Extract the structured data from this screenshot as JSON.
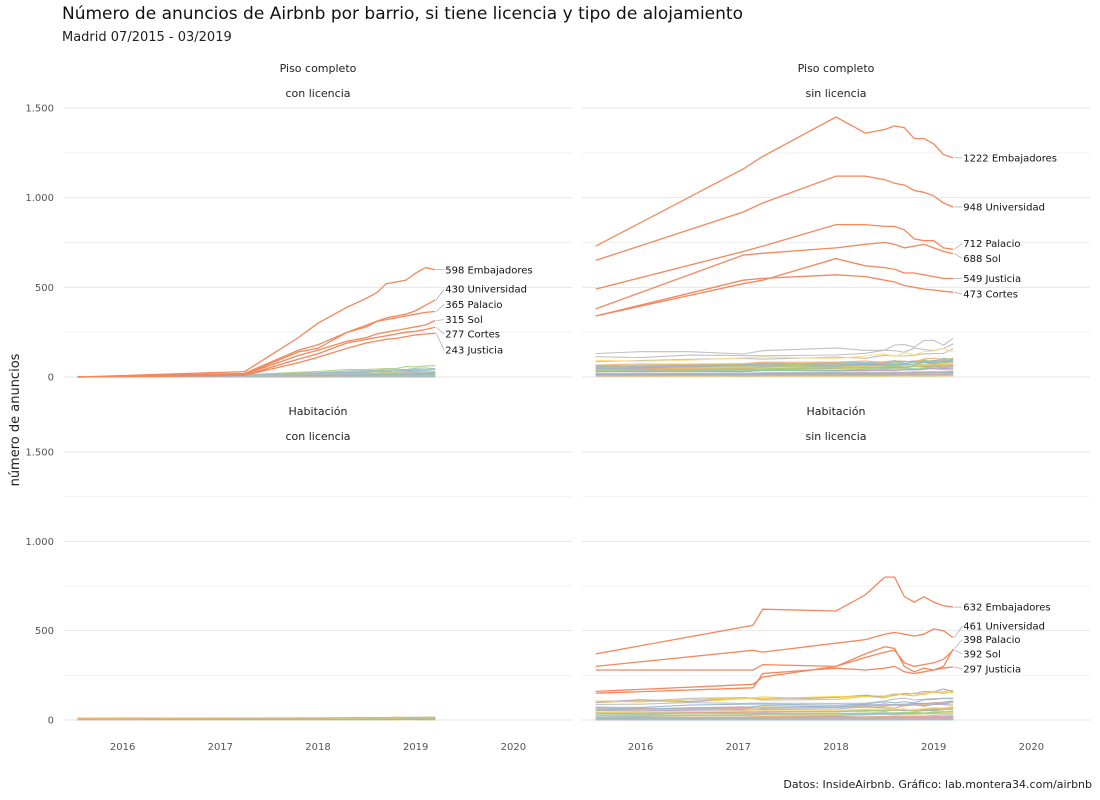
{
  "title": "Número de anuncios de Airbnb por barrio, si tiene licencia y tipo de alojamiento",
  "subtitle": "Madrid 07/2015 - 03/2019",
  "caption": "Datos: InsideAirbnb. Gráfico: lab.montera34.com/airbnb",
  "chart_data": {
    "type": "line",
    "ylabel": "número de anuncios",
    "xlim": [
      2015.4,
      2020.6
    ],
    "ylim": [
      0,
      1500
    ],
    "xticks": [
      2016,
      2017,
      2018,
      2019,
      2020
    ],
    "x_tick_labels": [
      "2016",
      "2017",
      "2018",
      "2019",
      "2020"
    ],
    "yticks": [
      0,
      500,
      1000,
      1500
    ],
    "y_tick_labels": [
      "0",
      "500",
      "1.000",
      "1.500"
    ],
    "grid": true,
    "colors": {
      "highlight": "#f4875d",
      "others": [
        "#8ec7b4",
        "#f2cf4a",
        "#b0a0c9",
        "#f5a86b",
        "#9bbad6",
        "#a7cf6c",
        "#e9a0c4",
        "#bababa",
        "#fde07a",
        "#95b2cf"
      ]
    },
    "panels": [
      {
        "row": 0,
        "col": 0,
        "strip": [
          "Piso completo",
          "con licencia"
        ],
        "series": [
          {
            "x": [
              2015.54,
              2017.25,
              2017.8,
              2018.0,
              2018.3,
              2018.5,
              2018.6,
              2018.7,
              2018.8,
              2018.9,
              2019.0,
              2019.1,
              2019.2
            ],
            "y": [
              0,
              30,
              220,
              300,
              390,
              440,
              470,
              520,
              530,
              540,
              580,
              610,
              598
            ],
            "label": "598 Embajadores"
          },
          {
            "x": [
              2015.54,
              2017.25,
              2017.8,
              2018.0,
              2018.3,
              2018.5,
              2018.6,
              2018.7,
              2018.8,
              2018.9,
              2019.0,
              2019.1,
              2019.2
            ],
            "y": [
              0,
              20,
              150,
              180,
              250,
              290,
              310,
              330,
              340,
              350,
              370,
              400,
              430
            ],
            "label": "430 Universidad"
          },
          {
            "x": [
              2015.54,
              2017.25,
              2017.8,
              2018.0,
              2018.3,
              2018.5,
              2018.6,
              2018.7,
              2018.8,
              2018.9,
              2019.0,
              2019.1,
              2019.2
            ],
            "y": [
              0,
              15,
              140,
              160,
              250,
              280,
              310,
              320,
              330,
              340,
              350,
              360,
              365
            ],
            "label": "365 Palacio"
          },
          {
            "x": [
              2015.54,
              2017.25,
              2017.8,
              2018.0,
              2018.3,
              2018.5,
              2018.6,
              2018.7,
              2018.8,
              2018.9,
              2019.0,
              2019.1,
              2019.2
            ],
            "y": [
              0,
              15,
              120,
              150,
              200,
              220,
              240,
              250,
              260,
              270,
              280,
              290,
              315
            ],
            "label": "315 Sol"
          },
          {
            "x": [
              2015.54,
              2017.25,
              2017.8,
              2018.0,
              2018.3,
              2018.5,
              2018.6,
              2018.7,
              2018.8,
              2018.9,
              2019.0,
              2019.1,
              2019.2
            ],
            "y": [
              0,
              10,
              100,
              130,
              190,
              210,
              220,
              230,
              240,
              250,
              255,
              265,
              277
            ],
            "label": "277 Cortes"
          },
          {
            "x": [
              2015.54,
              2017.25,
              2017.8,
              2018.0,
              2018.3,
              2018.5,
              2018.6,
              2018.7,
              2018.8,
              2018.9,
              2019.0,
              2019.1,
              2019.2
            ],
            "y": [
              0,
              10,
              80,
              110,
              160,
              190,
              200,
              210,
              215,
              225,
              235,
              240,
              243
            ],
            "label": "243 Justicia"
          }
        ],
        "label_y": [
          598,
          490,
          405,
          320,
          240,
          150
        ],
        "background_max": 80
      },
      {
        "row": 0,
        "col": 1,
        "strip": [
          "Piso completo",
          "sin licencia"
        ],
        "series": [
          {
            "x": [
              2015.54,
              2017.05,
              2017.25,
              2018.0,
              2018.3,
              2018.5,
              2018.6,
              2018.7,
              2018.8,
              2018.9,
              2019.0,
              2019.1,
              2019.2
            ],
            "y": [
              730,
              1160,
              1230,
              1450,
              1360,
              1380,
              1400,
              1390,
              1330,
              1330,
              1300,
              1240,
              1222
            ],
            "label": "1222 Embajadores"
          },
          {
            "x": [
              2015.54,
              2017.05,
              2017.25,
              2018.0,
              2018.3,
              2018.5,
              2018.6,
              2018.7,
              2018.8,
              2018.9,
              2019.0,
              2019.1,
              2019.2
            ],
            "y": [
              650,
              920,
              970,
              1120,
              1120,
              1100,
              1080,
              1070,
              1040,
              1030,
              1010,
              970,
              948
            ],
            "label": "948 Universidad"
          },
          {
            "x": [
              2015.54,
              2017.05,
              2017.25,
              2018.0,
              2018.3,
              2018.5,
              2018.6,
              2018.7,
              2018.8,
              2018.9,
              2019.0,
              2019.1,
              2019.2
            ],
            "y": [
              490,
              700,
              730,
              850,
              850,
              840,
              840,
              820,
              770,
              760,
              760,
              720,
              712
            ],
            "label": "712 Palacio"
          },
          {
            "x": [
              2015.54,
              2017.05,
              2017.25,
              2018.0,
              2018.3,
              2018.5,
              2018.6,
              2018.7,
              2018.8,
              2018.9,
              2019.0,
              2019.1,
              2019.2
            ],
            "y": [
              380,
              680,
              690,
              720,
              740,
              750,
              740,
              720,
              730,
              740,
              720,
              700,
              688
            ],
            "label": "688 Sol"
          },
          {
            "x": [
              2015.54,
              2017.05,
              2017.25,
              2018.0,
              2018.3,
              2018.5,
              2018.6,
              2018.7,
              2018.8,
              2018.9,
              2019.0,
              2019.1,
              2019.2
            ],
            "y": [
              340,
              520,
              540,
              660,
              620,
              610,
              600,
              580,
              580,
              570,
              560,
              550,
              549
            ],
            "label": "549 Justicia"
          },
          {
            "x": [
              2015.54,
              2017.05,
              2017.25,
              2018.0,
              2018.3,
              2018.5,
              2018.6,
              2018.7,
              2018.8,
              2018.9,
              2019.0,
              2019.1,
              2019.2
            ],
            "y": [
              340,
              540,
              550,
              570,
              560,
              540,
              530,
              510,
              500,
              490,
              485,
              478,
              473
            ],
            "label": "473 Cortes"
          }
        ],
        "label_y": [
          1222,
          948,
          745,
          662,
          549,
          462
        ],
        "background_max": 220
      },
      {
        "row": 1,
        "col": 0,
        "strip": [
          "Habitación",
          "con licencia"
        ],
        "series": [],
        "label_y": [],
        "background_max": 18
      },
      {
        "row": 1,
        "col": 1,
        "strip": [
          "Habitación",
          "sin licencia"
        ],
        "series": [
          {
            "x": [
              2015.54,
              2017.15,
              2017.25,
              2018.0,
              2018.3,
              2018.5,
              2018.6,
              2018.7,
              2018.8,
              2018.9,
              2019.0,
              2019.1,
              2019.2
            ],
            "y": [
              370,
              530,
              620,
              610,
              700,
              800,
              800,
              690,
              660,
              690,
              660,
              640,
              632
            ],
            "label": "632 Embajadores"
          },
          {
            "x": [
              2015.54,
              2017.15,
              2017.25,
              2018.0,
              2018.3,
              2018.5,
              2018.6,
              2018.7,
              2018.8,
              2018.9,
              2019.0,
              2019.1,
              2019.2
            ],
            "y": [
              300,
              390,
              380,
              430,
              450,
              480,
              490,
              480,
              470,
              480,
              510,
              500,
              461
            ],
            "label": "461 Universidad"
          },
          {
            "x": [
              2015.54,
              2017.15,
              2017.25,
              2018.0,
              2018.3,
              2018.5,
              2018.6,
              2018.7,
              2018.8,
              2018.9,
              2019.0,
              2019.1,
              2019.2
            ],
            "y": [
              280,
              280,
              310,
              300,
              370,
              410,
              400,
              300,
              270,
              290,
              280,
              300,
              398
            ],
            "label": "398 Palacio"
          },
          {
            "x": [
              2015.54,
              2017.15,
              2017.25,
              2018.0,
              2018.3,
              2018.5,
              2018.6,
              2018.7,
              2018.8,
              2018.9,
              2019.0,
              2019.1,
              2019.2
            ],
            "y": [
              160,
              200,
              240,
              300,
              350,
              380,
              390,
              320,
              300,
              310,
              320,
              340,
              392
            ],
            "label": "392 Sol"
          },
          {
            "x": [
              2015.54,
              2017.15,
              2017.25,
              2018.0,
              2018.3,
              2018.5,
              2018.6,
              2018.7,
              2018.8,
              2018.9,
              2019.0,
              2019.1,
              2019.2
            ],
            "y": [
              150,
              180,
              260,
              290,
              280,
              290,
              300,
              270,
              260,
              270,
              280,
              290,
              297
            ],
            "label": "297 Justicia"
          }
        ],
        "label_y": [
          632,
          525,
          450,
          370,
          285
        ],
        "background_max": 200
      }
    ]
  }
}
